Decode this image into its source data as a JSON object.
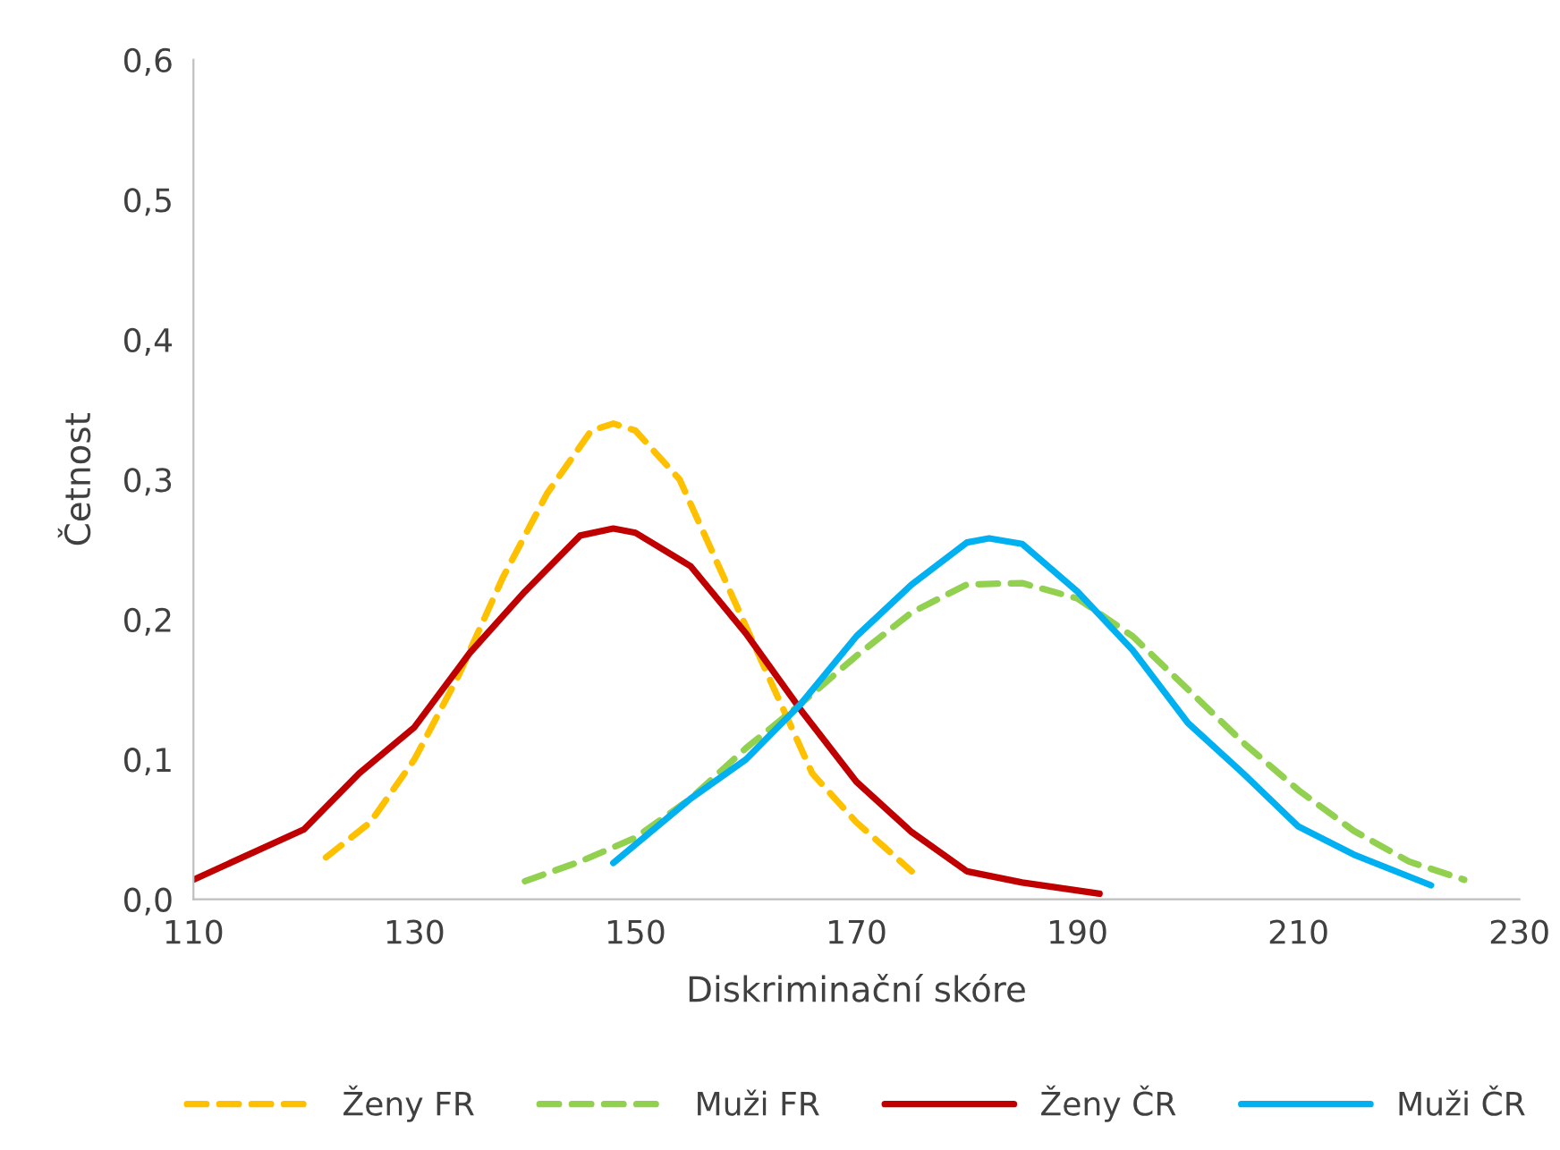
{
  "chart_data": {
    "type": "line",
    "xlabel": "Diskriminační skóre",
    "ylabel": "Četnost",
    "xlim": [
      110,
      230
    ],
    "xticks": [
      110,
      130,
      150,
      170,
      190,
      210,
      230
    ],
    "ylim": [
      0,
      0.6
    ],
    "yticks": [
      {
        "value": 0,
        "label": "0,0"
      },
      {
        "value": 0.1,
        "label": "0,1"
      },
      {
        "value": 0.2,
        "label": "0,2"
      },
      {
        "value": 0.3,
        "label": "0,3"
      },
      {
        "value": 0.4,
        "label": "0,4"
      },
      {
        "value": 0.5,
        "label": "0,5"
      },
      {
        "value": 0.6,
        "label": "0,6"
      }
    ],
    "grid": false,
    "legend": "bottom",
    "marker": "none",
    "series": [
      {
        "name": "Ženy FR",
        "color": "#ffc000",
        "line_style": "dashed",
        "x": [
          122,
          126,
          130,
          134,
          138,
          142,
          146,
          148,
          150,
          154,
          158,
          162,
          166,
          170,
          175
        ],
        "values": [
          0.03,
          0.055,
          0.1,
          0.16,
          0.23,
          0.29,
          0.335,
          0.34,
          0.335,
          0.3,
          0.23,
          0.16,
          0.09,
          0.055,
          0.02
        ]
      },
      {
        "name": "Muži FR",
        "color": "#92d050",
        "line_style": "dashed",
        "x": [
          140,
          145,
          150,
          155,
          160,
          165,
          170,
          175,
          180,
          185,
          190,
          195,
          200,
          205,
          210,
          215,
          220,
          225
        ],
        "values": [
          0.013,
          0.027,
          0.044,
          0.072,
          0.108,
          0.14,
          0.174,
          0.205,
          0.225,
          0.226,
          0.215,
          0.188,
          0.15,
          0.112,
          0.078,
          0.049,
          0.027,
          0.014
        ]
      },
      {
        "name": "Ženy ČR",
        "color": "#c00000",
        "line_style": "solid",
        "x": [
          110,
          120,
          125,
          130,
          135,
          140,
          145,
          148,
          150,
          155,
          160,
          165,
          170,
          175,
          180,
          185,
          192
        ],
        "values": [
          0.014,
          0.05,
          0.09,
          0.123,
          0.176,
          0.22,
          0.26,
          0.265,
          0.262,
          0.238,
          0.19,
          0.135,
          0.084,
          0.048,
          0.02,
          0.012,
          0.004
        ]
      },
      {
        "name": "Muži ČR",
        "color": "#00b0f0",
        "line_style": "solid",
        "x": [
          148,
          155,
          160,
          165,
          170,
          175,
          180,
          182,
          185,
          190,
          195,
          200,
          205,
          210,
          215,
          222
        ],
        "values": [
          0.026,
          0.072,
          0.1,
          0.14,
          0.188,
          0.225,
          0.255,
          0.258,
          0.254,
          0.22,
          0.178,
          0.126,
          0.09,
          0.052,
          0.032,
          0.01
        ]
      }
    ]
  }
}
